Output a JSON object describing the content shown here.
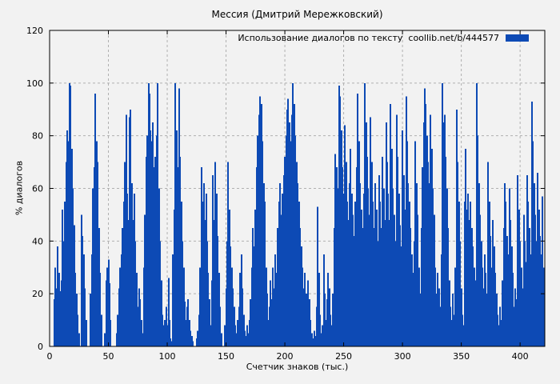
{
  "title": "Мессия (Дмитрий Мережковский)",
  "legend": {
    "label": "Использование диалогов по тексту",
    "link_text": "coollib.net/b/444577"
  },
  "colors": {
    "background": "#f2f2f2",
    "bar": "#0d4ab5",
    "grid": "#b0b0b0",
    "axis": "#000000",
    "text": "#000000"
  },
  "chart_data": {
    "type": "bar",
    "title": "Мессия (Дмитрий Мережковский)",
    "xlabel": "Счетчик знаков (тыс.)",
    "ylabel": "% диалогов",
    "legend_entries": [
      "Использование диалогов по тексту  coollib.net/b/444577"
    ],
    "legend_position": "top-right-inside",
    "grid": true,
    "xlim": [
      0,
      421
    ],
    "ylim": [
      0,
      120
    ],
    "xticks": [
      0,
      50,
      100,
      150,
      200,
      250,
      300,
      350,
      400
    ],
    "yticks": [
      0,
      20,
      40,
      60,
      80,
      100,
      120
    ],
    "values": [
      0,
      0,
      0,
      0,
      18,
      30,
      22,
      38,
      28,
      21,
      25,
      52,
      40,
      55,
      70,
      82,
      78,
      100,
      99,
      75,
      60,
      46,
      28,
      20,
      12,
      5,
      0,
      50,
      42,
      35,
      22,
      10,
      0,
      0,
      0,
      20,
      35,
      60,
      68,
      96,
      78,
      70,
      45,
      28,
      12,
      0,
      0,
      5,
      25,
      30,
      33,
      24,
      10,
      0,
      0,
      0,
      0,
      5,
      12,
      22,
      30,
      35,
      45,
      55,
      70,
      88,
      58,
      48,
      87,
      90,
      62,
      48,
      58,
      40,
      28,
      15,
      22,
      18,
      10,
      5,
      30,
      50,
      72,
      80,
      100,
      96,
      82,
      78,
      85,
      68,
      72,
      80,
      100,
      60,
      40,
      25,
      12,
      8,
      10,
      15,
      8,
      26,
      10,
      3,
      2,
      35,
      52,
      100,
      82,
      68,
      98,
      72,
      55,
      40,
      30,
      17,
      10,
      15,
      18,
      10,
      6,
      4,
      2,
      0,
      0,
      3,
      6,
      12,
      30,
      68,
      55,
      62,
      48,
      58,
      40,
      28,
      18,
      8,
      25,
      65,
      48,
      70,
      58,
      42,
      28,
      15,
      5,
      0,
      0,
      8,
      22,
      40,
      70,
      52,
      38,
      30,
      22,
      15,
      8,
      5,
      10,
      15,
      28,
      35,
      22,
      12,
      6,
      4,
      8,
      5,
      10,
      18,
      30,
      45,
      38,
      52,
      68,
      80,
      88,
      95,
      92,
      78,
      62,
      55,
      30,
      20,
      10,
      15,
      25,
      18,
      30,
      22,
      35,
      28,
      45,
      55,
      62,
      50,
      58,
      65,
      72,
      80,
      90,
      94,
      85,
      78,
      88,
      100,
      92,
      80,
      70,
      62,
      55,
      45,
      38,
      30,
      22,
      28,
      20,
      14,
      25,
      18,
      10,
      5,
      3,
      6,
      4,
      15,
      53,
      28,
      12,
      5,
      8,
      35,
      20,
      10,
      18,
      28,
      22,
      12,
      8,
      20,
      45,
      73,
      68,
      60,
      99,
      95,
      82,
      68,
      58,
      84,
      70,
      55,
      48,
      62,
      75,
      58,
      50,
      42,
      55,
      68,
      96,
      78,
      62,
      52,
      45,
      58,
      100,
      85,
      72,
      60,
      50,
      87,
      70,
      55,
      45,
      62,
      52,
      40,
      65,
      55,
      45,
      72,
      60,
      48,
      85,
      70,
      58,
      48,
      92,
      75,
      60,
      50,
      40,
      88,
      72,
      58,
      46,
      38,
      82,
      65,
      52,
      95,
      78,
      62,
      55,
      45,
      35,
      28,
      40,
      78,
      62,
      50,
      30,
      20,
      45,
      68,
      85,
      98,
      92,
      80,
      70,
      62,
      88,
      75,
      60,
      50,
      30,
      20,
      28,
      22,
      15,
      35,
      100,
      85,
      88,
      72,
      60,
      45,
      25,
      15,
      10,
      20,
      12,
      30,
      90,
      70,
      55,
      40,
      22,
      12,
      8,
      55,
      75,
      52,
      58,
      48,
      55,
      45,
      38,
      30,
      25,
      100,
      80,
      62,
      50,
      40,
      30,
      22,
      35,
      28,
      20,
      70,
      55,
      42,
      30,
      48,
      38,
      28,
      20,
      12,
      8,
      15,
      10,
      25,
      45,
      62,
      55,
      42,
      35,
      60,
      48,
      38,
      28,
      15,
      22,
      18,
      65,
      52,
      40,
      30,
      22,
      50,
      40,
      32,
      65,
      55,
      45,
      35,
      93,
      78,
      62,
      50,
      40,
      66,
      52,
      42,
      35,
      57,
      30
    ]
  }
}
